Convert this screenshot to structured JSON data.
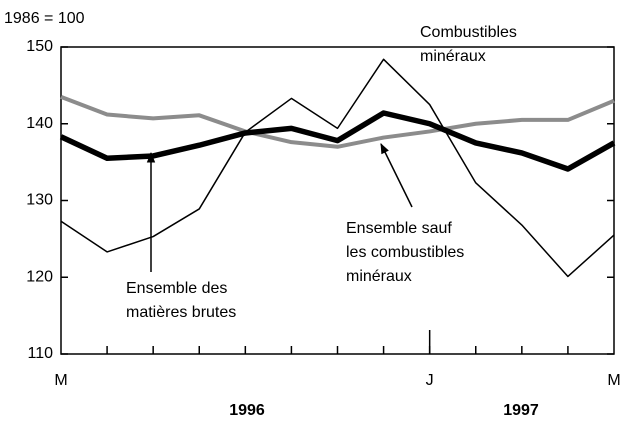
{
  "chart_data": {
    "type": "line",
    "subtitle": "1986 = 100",
    "categories": [
      "M",
      null,
      null,
      null,
      null,
      null,
      null,
      null,
      "J",
      null,
      null,
      null,
      "M"
    ],
    "years": [
      "1996",
      "1997"
    ],
    "ylim": [
      110,
      150
    ],
    "yticks": [
      110,
      120,
      130,
      140,
      150
    ],
    "grid": false,
    "series": [
      {
        "label_lines": [
          "Combustibles",
          "minéraux"
        ],
        "color": "#000000",
        "values": [
          127.3,
          123.3,
          125.3,
          128.9,
          138.9,
          143.3,
          139.4,
          148.4,
          142.5,
          132.3,
          126.8,
          120.1,
          125.5
        ]
      },
      {
        "label_lines": [
          "Ensemble sauf",
          "les combustibles",
          "minéraux"
        ],
        "color": "#8c8c8c",
        "values": [
          143.5,
          141.2,
          140.7,
          141.1,
          139.0,
          137.6,
          137.0,
          138.2,
          139.0,
          140.0,
          140.5,
          140.5,
          143.0
        ]
      },
      {
        "label_lines": [
          "Ensemble des",
          "matières brutes"
        ],
        "color": "#000000",
        "values": [
          138.3,
          135.5,
          135.8,
          137.2,
          138.8,
          139.4,
          137.8,
          141.4,
          140.0,
          137.5,
          136.2,
          134.1,
          137.5
        ]
      }
    ]
  }
}
